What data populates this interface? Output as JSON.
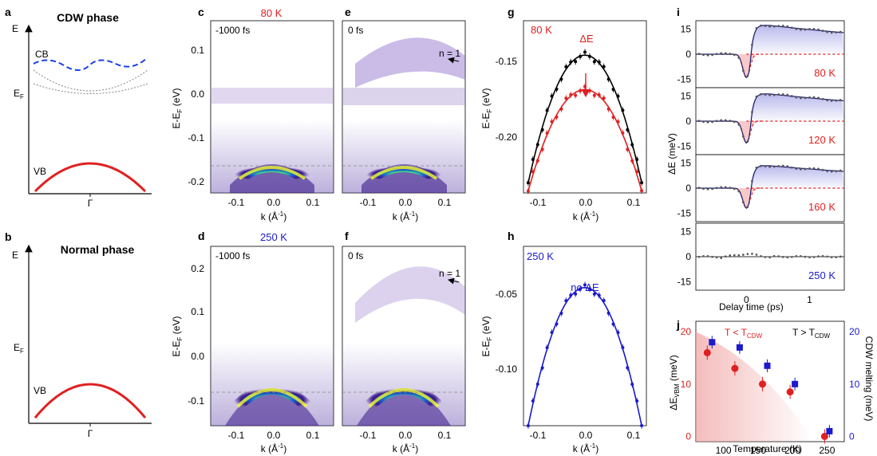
{
  "panels": {
    "a": {
      "letter": "a",
      "title": "CDW phase",
      "y_label": "E",
      "cb": "CB",
      "ef": "E",
      "ef_sub": "F",
      "vb": "VB",
      "x_label": "Γ"
    },
    "b": {
      "letter": "b",
      "title": "Normal phase",
      "y_label": "E",
      "ef": "E",
      "ef_sub": "F",
      "vb": "VB",
      "x_label": "Γ"
    },
    "c": {
      "letter": "c",
      "temp": "80 K",
      "delay": "-1000 fs"
    },
    "d": {
      "letter": "d",
      "temp": "250 K",
      "delay": "-1000 fs"
    },
    "e": {
      "letter": "e",
      "delay": "0 fs",
      "arrow_label": "n = 1"
    },
    "f": {
      "letter": "f",
      "delay": "0 fs",
      "arrow_label": "n = 1"
    },
    "g": {
      "letter": "g",
      "temp": "80 K",
      "annotation": "ΔE"
    },
    "h": {
      "letter": "h",
      "temp": "250 K",
      "annotation": "no ΔE"
    },
    "i": {
      "letter": "i",
      "temps": [
        "80 K",
        "120 K",
        "160 K",
        "250 K"
      ],
      "y_label": "ΔE (meV)",
      "x_label": "Delay time (ps)"
    },
    "j": {
      "letter": "j",
      "left_label": "T < T",
      "left_sub": "CDW",
      "right_label": "T > T",
      "right_sub": "CDW",
      "y1_label": "ΔE",
      "y1_sub": "VBM",
      "y1_unit": " (meV)",
      "y2_label": "CDW melting (meV)",
      "x_label": "Temperature (K)"
    }
  },
  "axis_text": {
    "ek_label": "E-E",
    "ek_sub": "F",
    "ek_unit": " (eV)",
    "k_label": "k (Å",
    "k_sup": "-1",
    "k_end": ")"
  },
  "ticks": {
    "cd_x": [
      "-0.1",
      "0.0",
      "0.1"
    ],
    "c_y": [
      "0.1",
      "0.0",
      "-0.1",
      "-0.2"
    ],
    "d_y": [
      "0.2",
      "0.1",
      "0.0",
      "-0.1"
    ],
    "g_y": [
      "-0.15",
      "-0.20"
    ],
    "h_y": [
      "-0.05",
      "-0.10"
    ],
    "gh_x": [
      "-0.1",
      "0.0",
      "0.1"
    ],
    "i_y": [
      "15",
      "0",
      "-15"
    ],
    "i_x": [
      "0",
      "1"
    ],
    "j_x": [
      "100",
      "150",
      "200",
      "250"
    ],
    "j_y": [
      "0",
      "10",
      "20"
    ]
  },
  "colors": {
    "cdw": "#e02020",
    "normal": "#1a1acc",
    "cb": "#1a3ee8",
    "black": "#000000",
    "fill_red": "#f6c5c5",
    "fill_blue": "#c9c9ef"
  },
  "chart_data": [
    {
      "type": "line",
      "panel": "g",
      "xlabel": "k (Å-1)",
      "ylabel": "E-EF (eV)",
      "ylim": [
        -0.225,
        -0.14
      ],
      "xlim": [
        -0.13,
        0.13
      ],
      "series": [
        {
          "name": "black",
          "x": [
            -0.12,
            -0.09,
            -0.06,
            -0.03,
            0,
            0.03,
            0.06,
            0.09,
            0.12
          ],
          "values": [
            -0.22,
            -0.191,
            -0.171,
            -0.16,
            -0.157,
            -0.16,
            -0.171,
            -0.191,
            -0.22
          ]
        },
        {
          "name": "red",
          "x": [
            -0.12,
            -0.09,
            -0.06,
            -0.03,
            0,
            0.03,
            0.06,
            0.09,
            0.12
          ],
          "values": [
            -0.224,
            -0.203,
            -0.186,
            -0.177,
            -0.174,
            -0.177,
            -0.186,
            -0.203,
            -0.224
          ]
        }
      ]
    },
    {
      "type": "line",
      "panel": "h",
      "xlabel": "k (Å-1)",
      "ylabel": "E-EF (eV)",
      "ylim": [
        -0.135,
        -0.035
      ],
      "xlim": [
        -0.13,
        0.13
      ],
      "series": [
        {
          "name": "blue",
          "x": [
            -0.12,
            -0.09,
            -0.06,
            -0.03,
            0,
            0.03,
            0.06,
            0.09,
            0.12
          ],
          "values": [
            -0.135,
            -0.104,
            -0.081,
            -0.064,
            -0.058,
            -0.064,
            -0.081,
            -0.104,
            -0.135
          ]
        }
      ]
    },
    {
      "type": "line",
      "panel": "i",
      "xlabel": "Delay time (ps)",
      "ylabel": "ΔE (meV)",
      "ylim": [
        -20,
        20
      ],
      "series": [
        {
          "name": "80 K",
          "x": [
            -0.6,
            -0.2,
            0,
            0.1,
            0.2,
            0.5,
            1.0,
            1.5
          ],
          "values": [
            0,
            -1,
            -14,
            -3,
            18,
            15,
            12,
            9
          ]
        },
        {
          "name": "120 K",
          "x": [
            -0.6,
            -0.2,
            0,
            0.1,
            0.2,
            0.5,
            1.0,
            1.5
          ],
          "values": [
            0,
            -1,
            -13,
            -2,
            17,
            15,
            12,
            10
          ]
        },
        {
          "name": "160 K",
          "x": [
            -0.6,
            -0.2,
            0,
            0.1,
            0.2,
            0.5,
            1.0,
            1.5
          ],
          "values": [
            0,
            -1,
            -12,
            -1,
            14,
            13,
            11,
            9
          ]
        },
        {
          "name": "250 K",
          "x": [
            -0.6,
            -0.2,
            0,
            0.1,
            0.2,
            0.5,
            1.0,
            1.5
          ],
          "values": [
            0,
            0,
            2,
            1,
            0,
            0,
            0,
            0
          ]
        }
      ]
    },
    {
      "type": "scatter",
      "panel": "j",
      "xlabel": "Temperature (K)",
      "ylabel": "ΔEVBM (meV)",
      "xlim": [
        60,
        275
      ],
      "ylim": [
        -1,
        22
      ],
      "series": [
        {
          "name": "ΔEVBM",
          "x": [
            80,
            120,
            160,
            200,
            250
          ],
          "values": [
            16,
            13,
            10,
            8.5,
            0
          ]
        },
        {
          "name": "CDW melting",
          "x": [
            80,
            120,
            160,
            200,
            250
          ],
          "values": [
            18,
            17,
            13.5,
            10,
            1
          ]
        }
      ]
    }
  ]
}
